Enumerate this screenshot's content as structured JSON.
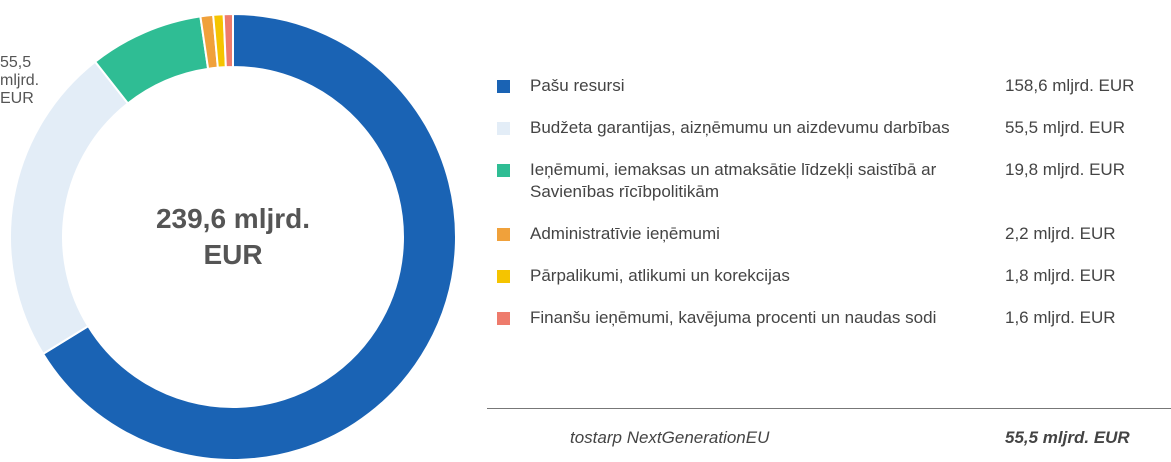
{
  "chart_data": {
    "type": "donut",
    "categories": [
      "Pašu resursi",
      "Budžeta garantijas, aizņēmumu un aizdevumu darbības",
      "Ieņēmumi, iemaksas un atmaksātie līdzekļi saistībā ar Savienības rīcībpolitikām",
      "Administratīvie ieņēmumi",
      "Pārpalikumi, atlikumi un korekcijas",
      "Finanšu ieņēmumi, kavējuma procenti un naudas sodi"
    ],
    "values": [
      158.6,
      55.5,
      19.8,
      2.2,
      1.8,
      1.6
    ],
    "value_labels": [
      "158,6 mljrd. EUR",
      "55,5 mljrd. EUR",
      "19,8 mljrd. EUR",
      "2,2 mljrd. EUR",
      "1,8 mljrd. EUR",
      "1,6 mljrd. EUR"
    ],
    "colors": [
      "#1a63b4",
      "#e3edf7",
      "#2fbd94",
      "#f0a13b",
      "#f5c400",
      "#ee7b6c"
    ],
    "center_label": "239,6 mljrd. EUR",
    "note": {
      "label": "tostarp NextGenerationEU",
      "value_label": "55,5 mljrd. EUR"
    }
  }
}
